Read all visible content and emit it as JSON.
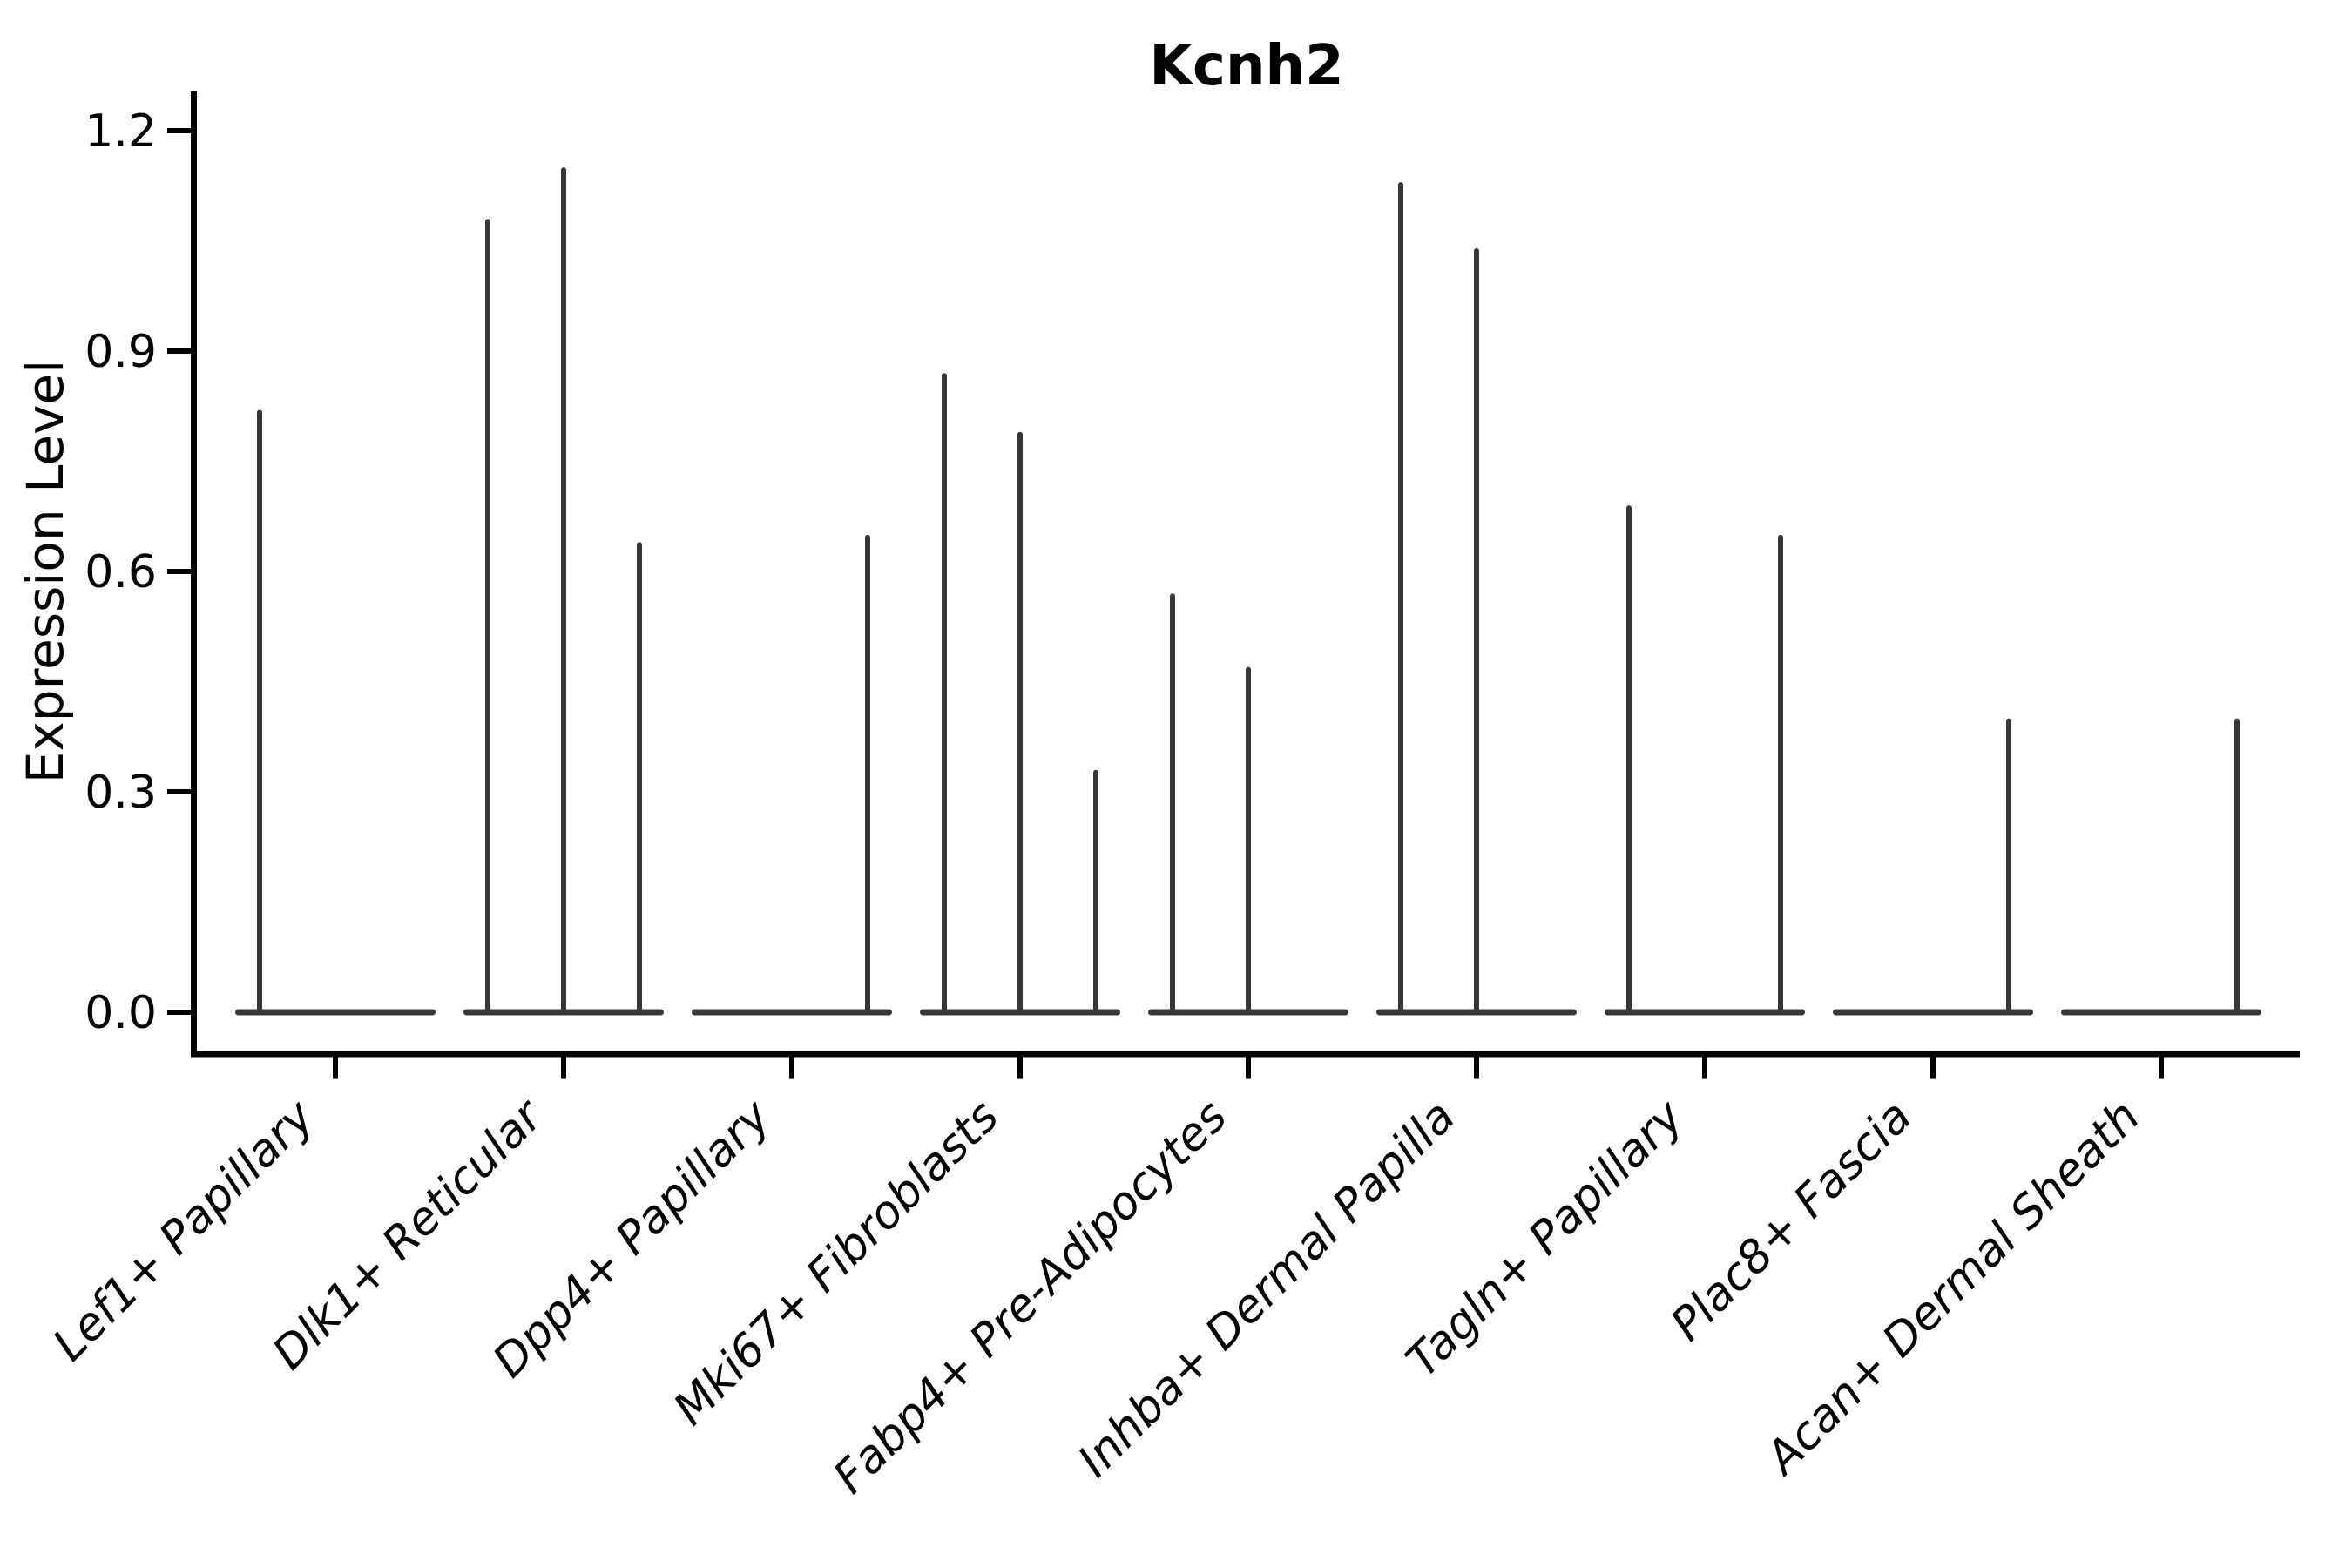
{
  "chart_data": {
    "type": "violin",
    "title": "Kcnh2",
    "ylabel": "Expression Level",
    "legend": "none",
    "grid": "off",
    "ylim": [
      -0.05,
      1.25
    ],
    "yticks": [
      {
        "label": "0.0",
        "value": 0.0
      },
      {
        "label": "0.3",
        "value": 0.3
      },
      {
        "label": "0.6",
        "value": 0.6
      },
      {
        "label": "0.9",
        "value": 0.9
      },
      {
        "label": "1.2",
        "value": 1.2
      }
    ],
    "categories": [
      "Lef1+ Papillary",
      "Dlk1+ Reticular",
      "Dpp4+ Papillary",
      "Mki67+ Fibroblasts",
      "Fabp4+ Pre-Adipocytes",
      "Inhba+ Dermal Papilla",
      "Tagln+ Papillary",
      "Plac8+ Fascia",
      "Acan+ Dermal Sheath"
    ],
    "groups": [
      {
        "category": "Lef1+ Papillary",
        "spikes": [
          {
            "position": -1,
            "max": 0.82
          }
        ]
      },
      {
        "category": "Dlk1+ Reticular",
        "spikes": [
          {
            "position": -1,
            "max": 1.08
          },
          {
            "position": 0,
            "max": 1.15
          },
          {
            "position": 1,
            "max": 0.64
          }
        ]
      },
      {
        "category": "Dpp4+ Papillary",
        "spikes": [
          {
            "position": 1,
            "max": 0.65
          }
        ]
      },
      {
        "category": "Mki67+ Fibroblasts",
        "spikes": [
          {
            "position": -1,
            "max": 0.87
          },
          {
            "position": 0,
            "max": 0.79
          },
          {
            "position": 1,
            "max": 0.33
          }
        ]
      },
      {
        "category": "Fabp4+ Pre-Adipocytes",
        "spikes": [
          {
            "position": -1,
            "max": 0.57
          },
          {
            "position": 0,
            "max": 0.47
          }
        ]
      },
      {
        "category": "Inhba+ Dermal Papilla",
        "spikes": [
          {
            "position": -1,
            "max": 1.13
          },
          {
            "position": 0,
            "max": 1.04
          }
        ]
      },
      {
        "category": "Tagln+ Papillary",
        "spikes": [
          {
            "position": -1,
            "max": 0.69
          },
          {
            "position": 1,
            "max": 0.65
          }
        ]
      },
      {
        "category": "Plac8+ Fascia",
        "spikes": [
          {
            "position": 1,
            "max": 0.4
          }
        ]
      },
      {
        "category": "Acan+ Dermal Sheath",
        "spikes": [
          {
            "position": 1,
            "max": 0.4
          }
        ]
      }
    ],
    "colors": {
      "violin": "#373737",
      "axis": "#000000",
      "text": "#000000",
      "background": "#ffffff"
    }
  }
}
